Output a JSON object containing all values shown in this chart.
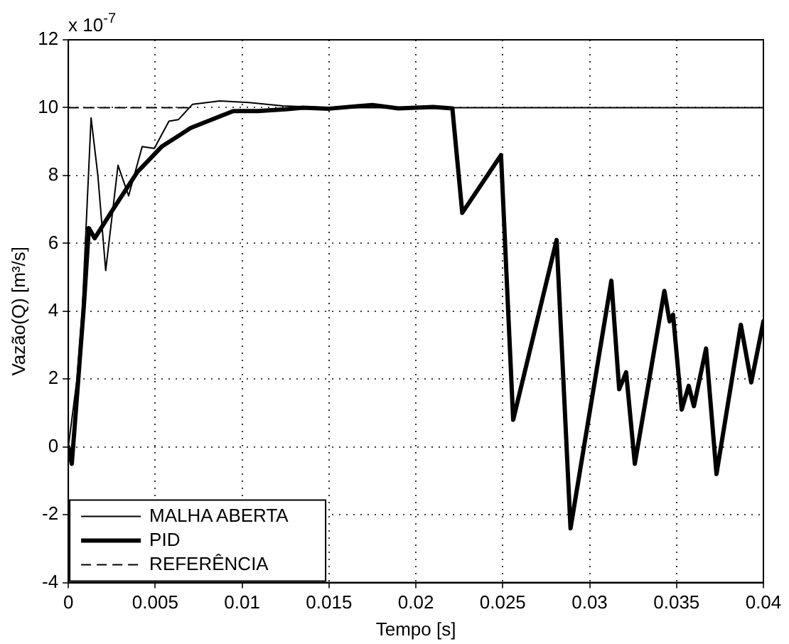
{
  "chart_data": {
    "type": "line",
    "xlabel": "Tempo [s]",
    "ylabel": "Vazão(Q) [m³/s]",
    "annotations": [
      "x 10$^{-7}$"
    ],
    "xlim": [
      0,
      0.04
    ],
    "xticks": [
      0,
      0.005,
      0.01,
      0.015,
      0.02,
      0.025,
      0.03,
      0.035,
      0.04
    ],
    "ylim": [
      -4,
      12
    ],
    "yticks": [
      -4,
      -2,
      0,
      2,
      4,
      6,
      8,
      10,
      12
    ],
    "grid": true,
    "legend": "bottom left",
    "marker": "none",
    "series": [
      {
        "name": "MALHA ABERTA",
        "color": "#000000",
        "line_style": "solid",
        "x": [
          0,
          0.0005,
          0.0008,
          0.00131,
          0.0017,
          0.00215,
          0.00286,
          0.00347,
          0.00425,
          0.00495,
          0.00579,
          0.00634,
          0.00715,
          0.00872,
          0.0104,
          0.01235,
          0.015,
          0.04
        ],
        "values": [
          0,
          2,
          4,
          9.7,
          8,
          5.2,
          8.3,
          7.4,
          8.85,
          8.8,
          9.6,
          9.65,
          10.1,
          10.2,
          10.15,
          10.05,
          10,
          10
        ]
      },
      {
        "name": "PID",
        "color": "#000000",
        "line_style": "solid",
        "x": [
          0,
          0.0002,
          0.0005,
          0.0009,
          0.00118,
          0.00152,
          0.00257,
          0.00397,
          0.00537,
          0.00704,
          0.009,
          0.0095,
          0.0109,
          0.0125,
          0.0135,
          0.015,
          0.0175,
          0.019,
          0.021,
          0.0221,
          0.02267,
          0.0249,
          0.0256,
          0.0281,
          0.0289,
          0.03125,
          0.0317,
          0.0321,
          0.0326,
          0.0343,
          0.0346,
          0.0348,
          0.0353,
          0.0357,
          0.036,
          0.0367,
          0.0373,
          0.0387,
          0.0393,
          0.04
        ],
        "values": [
          0,
          -0.5,
          1.5,
          4.2,
          6.45,
          6.15,
          7,
          8.1,
          8.85,
          9.4,
          9.8,
          9.9,
          9.9,
          9.95,
          10,
          9.97,
          10.08,
          9.98,
          10.02,
          9.98,
          6.9,
          8.6,
          0.8,
          6.1,
          -2.4,
          4.9,
          1.7,
          2.2,
          -0.5,
          4.6,
          3.7,
          3.9,
          1.1,
          1.8,
          1.2,
          2.9,
          -0.8,
          3.6,
          1.9,
          3.7
        ]
      },
      {
        "name": "REFERÊNCIA",
        "color": "#000000",
        "line_style": "dashed",
        "x": [
          0,
          0.007
        ],
        "values": [
          10,
          10
        ]
      }
    ]
  }
}
